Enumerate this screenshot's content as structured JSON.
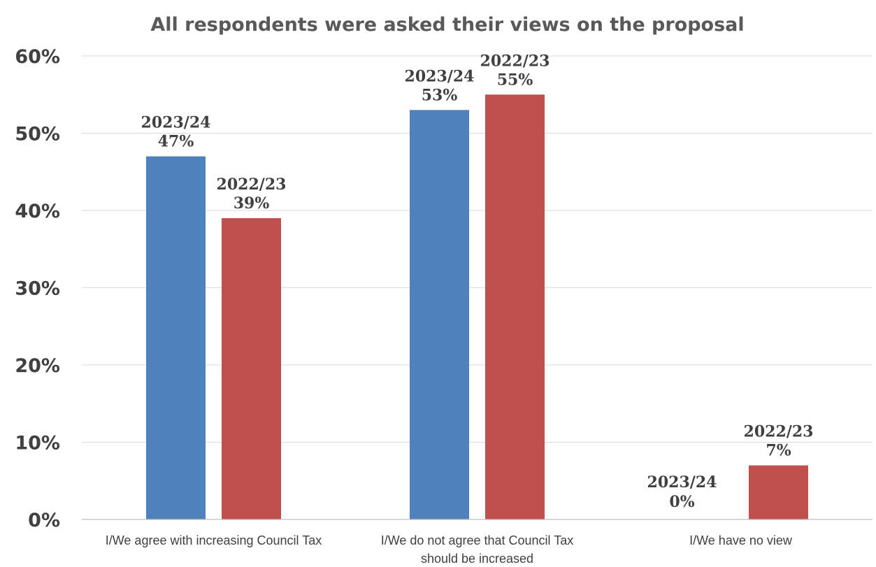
{
  "chart_data": {
    "type": "bar",
    "title": "All respondents were asked their views on the proposal",
    "categories": [
      [
        "I/We agree with increasing Council Tax"
      ],
      [
        "I/We do not agree that Council Tax",
        "should be increased"
      ],
      [
        "I/We have no view"
      ]
    ],
    "series": [
      {
        "name": "2023/24",
        "values": [
          47,
          53,
          0
        ],
        "color": "#4f81bd"
      },
      {
        "name": "2022/23",
        "values": [
          39,
          55,
          7
        ],
        "color": "#c0504d"
      }
    ],
    "data_labels": [
      {
        "series": "2023/24",
        "labels": [
          "47%",
          "53%",
          "0%"
        ]
      },
      {
        "series": "2022/23",
        "labels": [
          "39%",
          "55%",
          "7%"
        ]
      }
    ],
    "ylim": [
      0,
      60
    ],
    "yticks": [
      "0%",
      "10%",
      "20%",
      "30%",
      "40%",
      "50%",
      "60%"
    ],
    "ytick_values": [
      0,
      10,
      20,
      30,
      40,
      50,
      60
    ],
    "grid": true,
    "legend": "none"
  }
}
